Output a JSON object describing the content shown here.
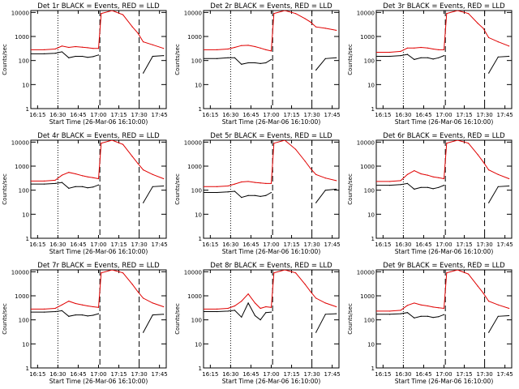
{
  "colors": {
    "events": "#000000",
    "lld": "#e00000",
    "axes": "#000000",
    "background": "#ffffff"
  },
  "shared": {
    "xlabel": "Start Time (26-Mar-06 16:10:00)",
    "ylabel": "Counts/sec",
    "x_ticks": [
      "16:15",
      "16:30",
      "16:45",
      "17:00",
      "17:15",
      "17:30",
      "17:45"
    ],
    "y_ticks": [
      "1",
      "10",
      "100",
      "1000",
      "10000"
    ],
    "xlim": [
      "16:10",
      "17:50"
    ],
    "ylim": [
      1,
      12000
    ],
    "yscale": "log",
    "markers": {
      "dotted_at": "16:30",
      "dashed_at": [
        "17:01",
        "17:30"
      ]
    }
  },
  "chart_data": [
    {
      "type": "line",
      "title": "Det 1r  BLACK = Events, RED = LLD",
      "x": [
        "16:10",
        "16:20",
        "16:28",
        "16:33",
        "16:38",
        "16:43",
        "16:48",
        "16:52",
        "16:56",
        "17:00",
        "17:02",
        "17:10",
        "17:18",
        "17:25",
        "17:29",
        "17:33",
        "17:40",
        "17:48"
      ],
      "series": [
        {
          "name": "Events",
          "values": [
            190,
            190,
            200,
            230,
            130,
            150,
            150,
            135,
            145,
            170,
            null,
            null,
            null,
            null,
            null,
            30,
            150,
            160
          ]
        },
        {
          "name": "LLD",
          "values": [
            280,
            280,
            300,
            400,
            350,
            380,
            360,
            340,
            320,
            320,
            9000,
            12000,
            8000,
            2500,
            1400,
            600,
            450,
            320
          ]
        }
      ]
    },
    {
      "type": "line",
      "title": "Det 2r  BLACK = Events, RED = LLD",
      "x": [
        "16:10",
        "16:20",
        "16:28",
        "16:33",
        "16:38",
        "16:43",
        "16:48",
        "16:52",
        "16:56",
        "17:00",
        "17:02",
        "17:10",
        "17:18",
        "17:25",
        "17:29",
        "17:33",
        "17:40",
        "17:48"
      ],
      "series": [
        {
          "name": "Events",
          "values": [
            120,
            120,
            130,
            130,
            70,
            80,
            80,
            75,
            80,
            110,
            null,
            null,
            null,
            null,
            null,
            40,
            120,
            130
          ]
        },
        {
          "name": "LLD",
          "values": [
            280,
            280,
            300,
            350,
            420,
            430,
            380,
            330,
            280,
            250,
            9000,
            12000,
            9000,
            5500,
            4000,
            2500,
            2200,
            1800
          ]
        }
      ]
    },
    {
      "type": "line",
      "title": "Det 3r  BLACK = Events, RED = LLD",
      "x": [
        "16:10",
        "16:20",
        "16:28",
        "16:33",
        "16:38",
        "16:43",
        "16:48",
        "16:52",
        "16:56",
        "17:00",
        "17:02",
        "17:10",
        "17:18",
        "17:25",
        "17:29",
        "17:33",
        "17:40",
        "17:48"
      ],
      "series": [
        {
          "name": "Events",
          "values": [
            150,
            150,
            160,
            180,
            110,
            130,
            130,
            115,
            130,
            160,
            null,
            null,
            null,
            null,
            null,
            30,
            140,
            150
          ]
        },
        {
          "name": "LLD",
          "values": [
            220,
            220,
            240,
            330,
            330,
            350,
            330,
            300,
            280,
            280,
            9000,
            12000,
            9000,
            3500,
            2200,
            900,
            600,
            400
          ]
        }
      ]
    },
    {
      "type": "line",
      "title": "Det 4r  BLACK = Events, RED = LLD",
      "x": [
        "16:10",
        "16:20",
        "16:28",
        "16:33",
        "16:38",
        "16:43",
        "16:48",
        "16:52",
        "16:56",
        "17:00",
        "17:02",
        "17:10",
        "17:18",
        "17:25",
        "17:29",
        "17:33",
        "17:40",
        "17:48"
      ],
      "series": [
        {
          "name": "Events",
          "values": [
            180,
            180,
            190,
            210,
            120,
            140,
            140,
            125,
            135,
            165,
            null,
            null,
            null,
            null,
            null,
            30,
            140,
            150
          ]
        },
        {
          "name": "LLD",
          "values": [
            240,
            240,
            260,
            420,
            550,
            480,
            400,
            360,
            330,
            300,
            9000,
            12000,
            8000,
            2500,
            1300,
            700,
            450,
            300
          ]
        }
      ]
    },
    {
      "type": "line",
      "title": "Det 5r  BLACK = Events, RED = LLD",
      "x": [
        "16:10",
        "16:20",
        "16:28",
        "16:33",
        "16:38",
        "16:43",
        "16:48",
        "16:52",
        "16:56",
        "17:00",
        "17:02",
        "17:10",
        "17:18",
        "17:25",
        "17:29",
        "17:33",
        "17:40",
        "17:48"
      ],
      "series": [
        {
          "name": "Events",
          "values": [
            80,
            80,
            85,
            90,
            50,
            60,
            60,
            55,
            60,
            80,
            null,
            null,
            null,
            null,
            null,
            30,
            100,
            110
          ]
        },
        {
          "name": "LLD",
          "values": [
            140,
            140,
            150,
            180,
            220,
            230,
            210,
            200,
            190,
            190,
            9000,
            12000,
            5000,
            1600,
            800,
            450,
            320,
            250
          ]
        }
      ]
    },
    {
      "type": "line",
      "title": "Det 6r  BLACK = Events, RED = LLD",
      "x": [
        "16:10",
        "16:20",
        "16:28",
        "16:33",
        "16:38",
        "16:43",
        "16:48",
        "16:52",
        "16:56",
        "17:00",
        "17:02",
        "17:10",
        "17:18",
        "17:25",
        "17:29",
        "17:33",
        "17:40",
        "17:48"
      ],
      "series": [
        {
          "name": "Events",
          "values": [
            160,
            160,
            170,
            190,
            110,
            130,
            130,
            115,
            130,
            160,
            null,
            null,
            null,
            null,
            null,
            30,
            140,
            150
          ]
        },
        {
          "name": "LLD",
          "values": [
            230,
            230,
            250,
            450,
            650,
            480,
            420,
            360,
            330,
            300,
            9000,
            12000,
            9000,
            3000,
            1500,
            700,
            450,
            300
          ]
        }
      ]
    },
    {
      "type": "line",
      "title": "Det 7r  BLACK = Events, RED = LLD",
      "x": [
        "16:10",
        "16:20",
        "16:28",
        "16:33",
        "16:38",
        "16:43",
        "16:48",
        "16:52",
        "16:56",
        "17:00",
        "17:02",
        "17:10",
        "17:18",
        "17:25",
        "17:29",
        "17:33",
        "17:40",
        "17:48"
      ],
      "series": [
        {
          "name": "Events",
          "values": [
            210,
            210,
            220,
            240,
            140,
            160,
            160,
            145,
            155,
            180,
            null,
            null,
            null,
            null,
            null,
            30,
            160,
            170
          ]
        },
        {
          "name": "LLD",
          "values": [
            280,
            280,
            300,
            420,
            600,
            480,
            420,
            380,
            350,
            330,
            9000,
            12000,
            9000,
            3000,
            1500,
            800,
            500,
            350
          ]
        }
      ]
    },
    {
      "type": "line",
      "title": "Det 8r  BLACK = Events, RED = LLD",
      "x": [
        "16:10",
        "16:20",
        "16:28",
        "16:33",
        "16:38",
        "16:43",
        "16:48",
        "16:52",
        "16:56",
        "17:00",
        "17:02",
        "17:10",
        "17:18",
        "17:25",
        "17:29",
        "17:33",
        "17:40",
        "17:48"
      ],
      "series": [
        {
          "name": "Events",
          "values": [
            220,
            220,
            230,
            250,
            130,
            500,
            150,
            100,
            200,
            210,
            null,
            null,
            null,
            null,
            null,
            30,
            170,
            180
          ]
        },
        {
          "name": "LLD",
          "values": [
            280,
            280,
            300,
            380,
            600,
            1200,
            500,
            300,
            350,
            330,
            9000,
            12000,
            9000,
            3000,
            1500,
            800,
            500,
            350
          ]
        }
      ]
    },
    {
      "type": "line",
      "title": "Det 9r  BLACK = Events, RED = LLD",
      "x": [
        "16:10",
        "16:20",
        "16:28",
        "16:33",
        "16:38",
        "16:43",
        "16:48",
        "16:52",
        "16:56",
        "17:00",
        "17:02",
        "17:10",
        "17:18",
        "17:25",
        "17:29",
        "17:33",
        "17:40",
        "17:48"
      ],
      "series": [
        {
          "name": "Events",
          "values": [
            170,
            170,
            180,
            200,
            120,
            140,
            140,
            125,
            135,
            165,
            null,
            null,
            null,
            null,
            null,
            30,
            140,
            150
          ]
        },
        {
          "name": "LLD",
          "values": [
            230,
            230,
            250,
            400,
            500,
            420,
            380,
            340,
            320,
            300,
            9000,
            12000,
            8000,
            2500,
            1300,
            600,
            420,
            300
          ]
        }
      ]
    }
  ]
}
